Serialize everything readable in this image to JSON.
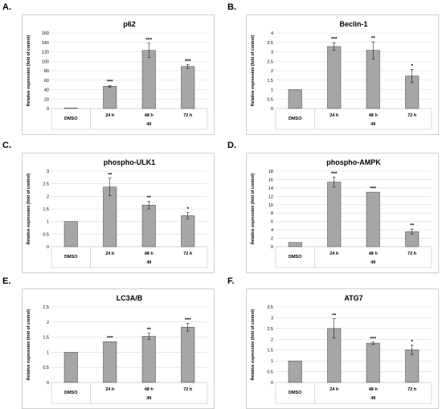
{
  "panels": [
    {
      "letter": "A."
    },
    {
      "letter": "B."
    },
    {
      "letter": "C."
    },
    {
      "letter": "D."
    },
    {
      "letter": "E."
    },
    {
      "letter": "F."
    }
  ],
  "colors": {
    "bar": "#a6a6a6",
    "bar_edge": "#404040",
    "grid": "#d9d9d9",
    "text": "#000000"
  },
  "chart_data": [
    {
      "type": "bar",
      "title": "p62",
      "ylabel": "Relative expression (fold of control)",
      "categories": [
        "DMSO",
        "24 h",
        "48 h",
        "72 h"
      ],
      "group_label": "49",
      "values": [
        1,
        47,
        123,
        89
      ],
      "errors": [
        0,
        2,
        15,
        4
      ],
      "significance": [
        "",
        "***",
        "***",
        "***"
      ],
      "ylim": [
        0,
        160
      ],
      "yticks": [
        0,
        20,
        40,
        60,
        80,
        100,
        120,
        140,
        160
      ],
      "grid": true
    },
    {
      "type": "bar",
      "title": "Beclin-1",
      "ylabel": "Relative expression (fold of control)",
      "categories": [
        "DMSO",
        "24 h",
        "48 h",
        "72 h"
      ],
      "group_label": "49",
      "values": [
        1,
        3.28,
        3.08,
        1.72
      ],
      "errors": [
        0,
        0.2,
        0.45,
        0.35
      ],
      "significance": [
        "",
        "***",
        "**",
        "*"
      ],
      "ylim": [
        0,
        4
      ],
      "yticks": [
        0,
        0.5,
        1,
        1.5,
        2,
        2.5,
        3,
        3.5,
        4
      ],
      "grid": true
    },
    {
      "type": "bar",
      "title": "phospho-ULK1",
      "ylabel": "Relative expression (fold of control)",
      "categories": [
        "DMSO",
        "24 h",
        "48 h",
        "72 h"
      ],
      "group_label": "49",
      "values": [
        1,
        2.37,
        1.65,
        1.23
      ],
      "errors": [
        0,
        0.35,
        0.15,
        0.12
      ],
      "significance": [
        "",
        "**",
        "**",
        "*"
      ],
      "ylim": [
        0,
        3
      ],
      "yticks": [
        0,
        0.5,
        1,
        1.5,
        2,
        2.5,
        3
      ],
      "grid": true
    },
    {
      "type": "bar",
      "title": "phospho-AMPK",
      "ylabel": "Relative expression (fold of control)",
      "categories": [
        "DMSO",
        "24 h",
        "48 h",
        "72 h"
      ],
      "group_label": "49",
      "values": [
        1,
        15.4,
        13,
        3.6
      ],
      "errors": [
        0,
        1.2,
        0,
        0.6
      ],
      "significance": [
        "",
        "***",
        "***",
        "**"
      ],
      "ylim": [
        0,
        18
      ],
      "yticks": [
        0,
        2,
        4,
        6,
        8,
        10,
        12,
        14,
        16,
        18
      ],
      "grid": true
    },
    {
      "type": "bar",
      "title": "LC3A/B",
      "ylabel": "Relative expression (fold of control)",
      "categories": [
        "DMSO",
        "24 h",
        "48 h",
        "72 h"
      ],
      "group_label": "49",
      "values": [
        1,
        1.35,
        1.53,
        1.83
      ],
      "errors": [
        0,
        0,
        0.1,
        0.13
      ],
      "significance": [
        "",
        "***",
        "**",
        "***"
      ],
      "ylim": [
        0,
        2.5
      ],
      "yticks": [
        0,
        0.5,
        1,
        1.5,
        2,
        2.5
      ],
      "grid": true
    },
    {
      "type": "bar",
      "title": "ATG7",
      "ylabel": "Relative expression (fold of control)",
      "categories": [
        "DMSO",
        "24 h",
        "48 h",
        "72 h"
      ],
      "group_label": "49",
      "values": [
        1,
        2.5,
        1.82,
        1.52
      ],
      "errors": [
        0,
        0.45,
        0.05,
        0.22
      ],
      "significance": [
        "",
        "**",
        "***",
        "*"
      ],
      "ylim": [
        0,
        3.5
      ],
      "yticks": [
        0,
        0.5,
        1,
        1.5,
        2,
        2.5,
        3,
        3.5
      ],
      "grid": true
    }
  ]
}
